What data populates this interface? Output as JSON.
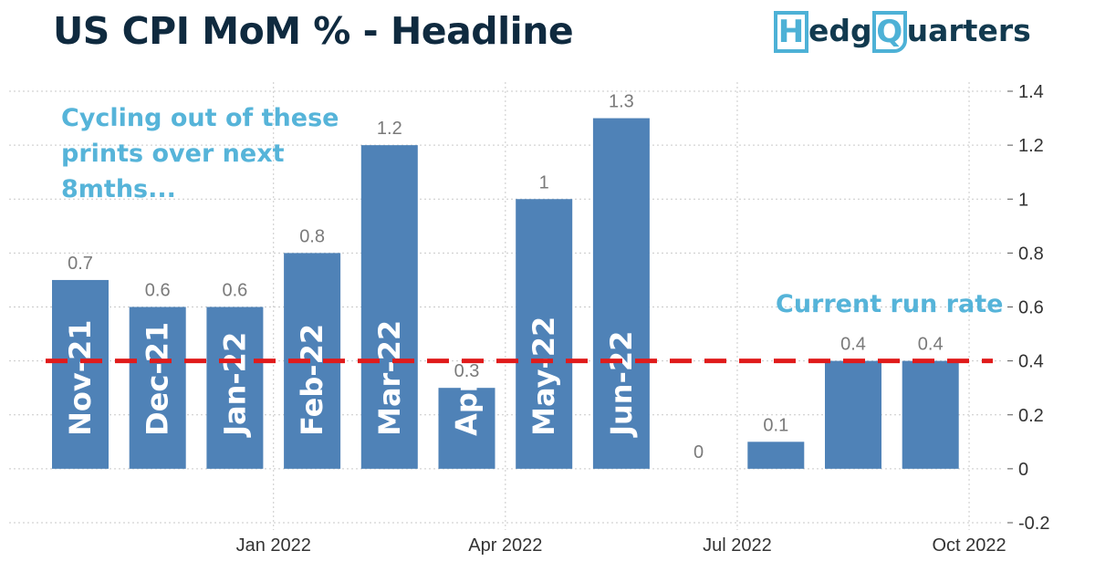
{
  "title": "US CPI MoM % - Headline",
  "logo": {
    "letter1": "H",
    "part1": "edg",
    "letter2": "Q",
    "part2": "uarters"
  },
  "colors": {
    "bar": "#4f82b7",
    "runrate": "#e01b1b",
    "annotation": "#56b4d9",
    "grid": "#c9c9c9"
  },
  "annotations": {
    "cycling": [
      "Cycling out of these",
      "prints over next",
      "8mths..."
    ],
    "runrate": "Current run rate"
  },
  "chart_data": {
    "type": "bar",
    "title": "US CPI MoM % - Headline",
    "categories": [
      "Nov-21",
      "Dec-21",
      "Jan-22",
      "Feb-22",
      "Mar-22",
      "Apr",
      "May-22",
      "Jun-22",
      "",
      "",
      "",
      ""
    ],
    "values": [
      0.7,
      0.6,
      0.6,
      0.8,
      1.2,
      0.3,
      1.0,
      1.3,
      0.0,
      0.1,
      0.4,
      0.4
    ],
    "data_labels": [
      "0.7",
      "0.6",
      "0.6",
      "0.8",
      "1.2",
      "0.3",
      "1",
      "1.3",
      "0",
      "0.1",
      "0.4",
      "0.4"
    ],
    "x_ticks": [
      "Jan 2022",
      "Apr 2022",
      "Jul 2022",
      "Oct 2022"
    ],
    "x_tick_after_bar_index": [
      2,
      5,
      8,
      11
    ],
    "y_ticks": [
      "1.4",
      "1.2",
      "1",
      "0.8",
      "0.6",
      "0.4",
      "0.2",
      "0",
      "-0.2"
    ],
    "ylim": [
      -0.2,
      1.4
    ],
    "y_axis_side": "right",
    "grid": true,
    "reference_line": {
      "value": 0.4,
      "style": "dashed"
    }
  }
}
